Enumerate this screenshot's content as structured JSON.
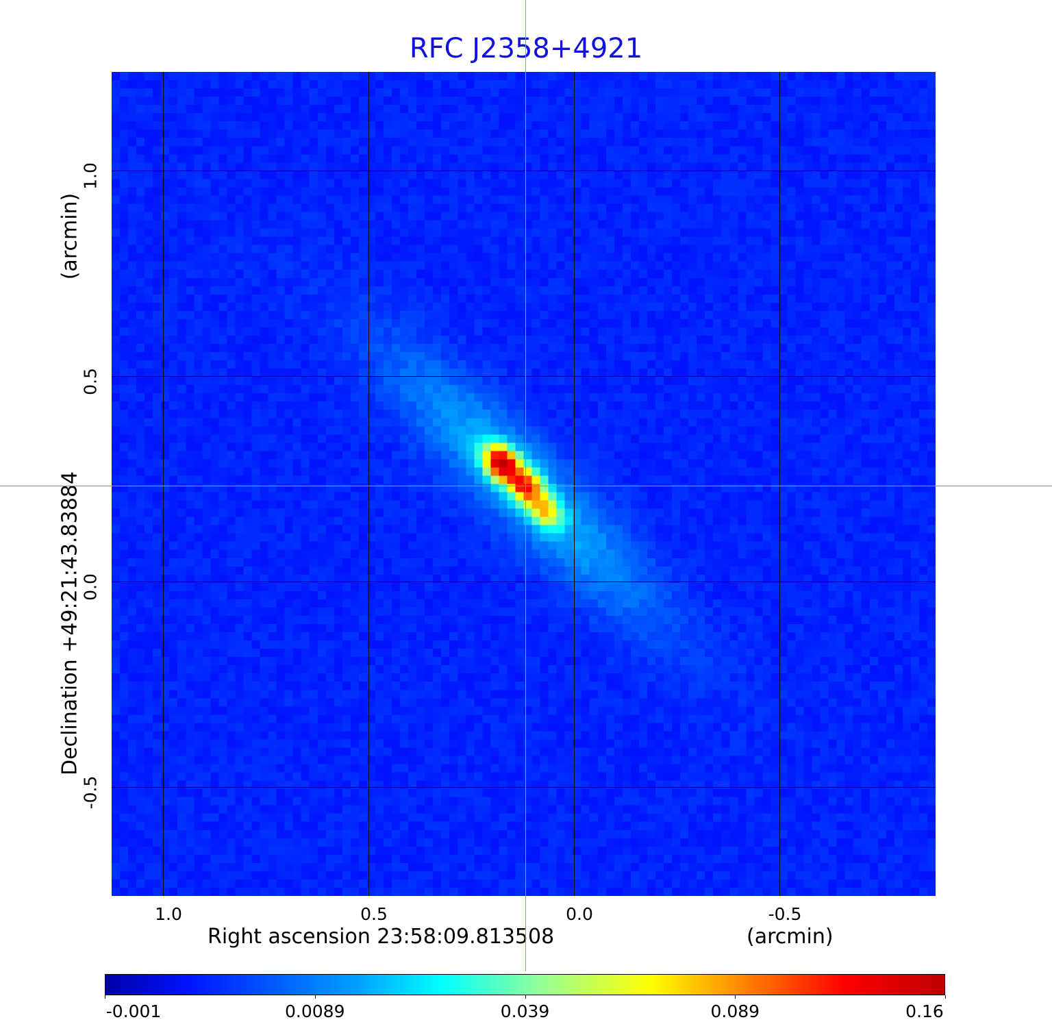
{
  "chart_data": {
    "type": "heatmap",
    "title": "RFC J2358+4921",
    "xlabel": "Right ascension  23:58:09.813508",
    "xunit": "(arcmin)",
    "ylabel": "Declination  +49:21:43.83884",
    "yunit": "(arcmin)",
    "xlim": [
      1.125,
      -0.88
    ],
    "ylim": [
      -0.765,
      1.24
    ],
    "xticks": [
      "1.0",
      "0.5",
      "0.0",
      "-0.5"
    ],
    "xtick_values": [
      1.0,
      0.5,
      0.0,
      -0.5
    ],
    "yticks": [
      "1.0",
      "0.5",
      "0.0",
      "-0.5"
    ],
    "ytick_values": [
      1.0,
      0.5,
      0.0,
      -0.5
    ],
    "grid": true,
    "crosshair": {
      "x": 0.118,
      "y": 0.233
    },
    "colormap": "jet",
    "colorbar": {
      "ticks": [
        "-0.001",
        "0.0089",
        "0.039",
        "0.089",
        "0.16"
      ],
      "min": -0.001,
      "max": 0.16,
      "placement": "bottom"
    },
    "source_components": [
      {
        "x": 0.175,
        "y": 0.287,
        "peak": 0.16
      },
      {
        "x": 0.118,
        "y": 0.233,
        "peak": 0.11
      },
      {
        "x": 0.072,
        "y": 0.173,
        "peak": 0.06
      }
    ]
  }
}
